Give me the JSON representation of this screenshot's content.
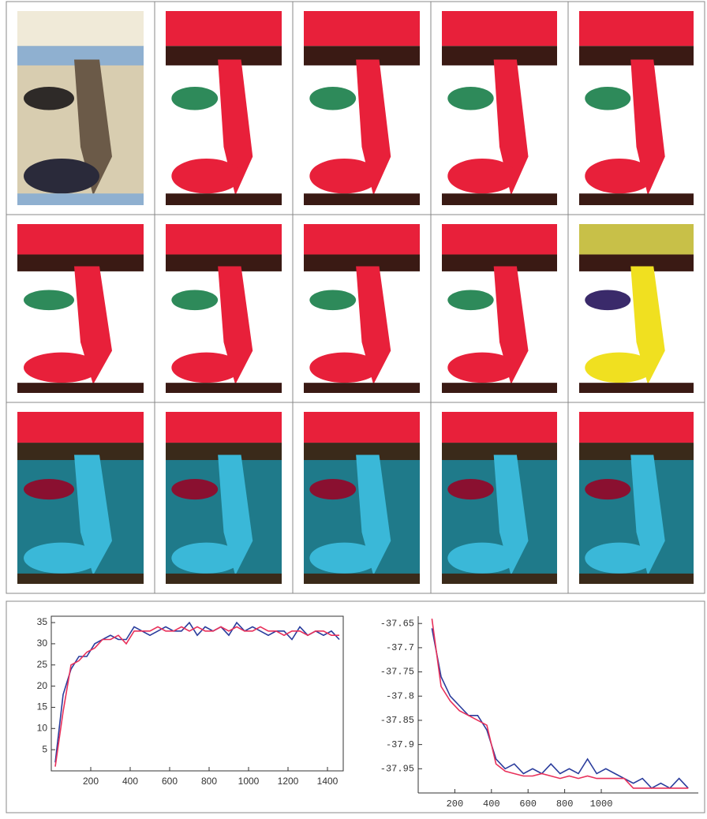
{
  "chart_data": [
    {
      "type": "line",
      "x": [
        20,
        60,
        100,
        140,
        180,
        220,
        260,
        300,
        340,
        380,
        420,
        460,
        500,
        540,
        580,
        620,
        660,
        700,
        740,
        780,
        820,
        860,
        900,
        940,
        980,
        1020,
        1060,
        1100,
        1140,
        1180,
        1220,
        1260,
        1300,
        1340,
        1380,
        1420,
        1460
      ],
      "series": [
        {
          "color": "#2a3c9c",
          "values": [
            2,
            18,
            24,
            27,
            27,
            30,
            31,
            32,
            31,
            31,
            34,
            33,
            32,
            33,
            34,
            33,
            33,
            35,
            32,
            34,
            33,
            34,
            32,
            35,
            33,
            34,
            33,
            32,
            33,
            33,
            31,
            34,
            32,
            33,
            32,
            33,
            31
          ]
        },
        {
          "color": "#e8305a",
          "values": [
            1,
            14,
            25,
            26,
            28,
            29,
            31,
            31,
            32,
            30,
            33,
            33,
            33,
            34,
            33,
            33,
            34,
            33,
            34,
            33,
            33,
            34,
            33,
            34,
            33,
            33,
            34,
            33,
            33,
            32,
            33,
            33,
            32,
            33,
            33,
            32,
            32
          ]
        }
      ],
      "xlim": [
        0,
        1480
      ],
      "xticks": [
        200,
        400,
        600,
        800,
        1000,
        1200,
        1400
      ],
      "ylim": [
        0,
        36.5
      ],
      "yticks": [
        5,
        10,
        15,
        20,
        25,
        30,
        35
      ]
    },
    {
      "type": "line",
      "x": [
        75,
        125,
        175,
        225,
        275,
        325,
        375,
        425,
        475,
        525,
        575,
        625,
        675,
        725,
        775,
        825,
        875,
        925,
        975,
        1025,
        1075,
        1125,
        1175,
        1225,
        1275,
        1325,
        1375,
        1425,
        1475
      ],
      "series": [
        {
          "color": "#2a3c9c",
          "values": [
            -37.66,
            -37.76,
            -37.8,
            -37.82,
            -37.84,
            -37.84,
            -37.87,
            -37.93,
            -37.95,
            -37.94,
            -37.96,
            -37.95,
            -37.96,
            -37.94,
            -37.96,
            -37.95,
            -37.96,
            -37.93,
            -37.96,
            -37.95,
            -37.96,
            -37.97,
            -37.98,
            -37.97,
            -37.99,
            -37.98,
            -37.99,
            -37.97,
            -37.99
          ]
        },
        {
          "color": "#e8305a",
          "values": [
            -37.64,
            -37.78,
            -37.81,
            -37.83,
            -37.84,
            -37.85,
            -37.86,
            -37.94,
            -37.955,
            -37.96,
            -37.965,
            -37.965,
            -37.96,
            -37.965,
            -37.97,
            -37.965,
            -37.97,
            -37.965,
            -37.97,
            -37.97,
            -37.97,
            -37.97,
            -37.99,
            -37.99,
            -37.99,
            -37.99,
            -37.99,
            -37.99,
            -37.99
          ]
        }
      ],
      "xlim": [
        0,
        1530
      ],
      "xticks": [
        200,
        400,
        600,
        800,
        1000
      ],
      "ylim": [
        -38.0,
        -37.635
      ],
      "yticks": [
        -37.65,
        -37.7,
        -37.75,
        -37.8,
        -37.85,
        -37.9,
        -37.95
      ]
    }
  ]
}
